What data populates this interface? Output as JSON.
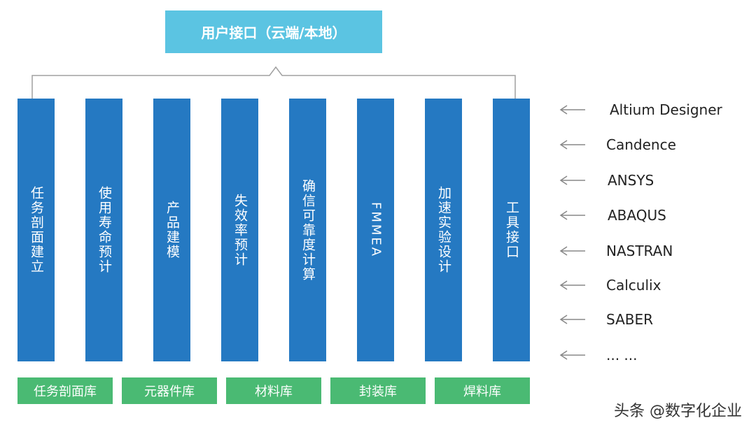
{
  "header": {
    "title": "用户接口（云端/本地）"
  },
  "modules": [
    {
      "label": "任务剖面建立"
    },
    {
      "label": "使用寿命预计"
    },
    {
      "label": "产品建模"
    },
    {
      "label": "失效率预计"
    },
    {
      "label": "确信可靠度计算"
    },
    {
      "label": "FMMEA"
    },
    {
      "label": "加速实验设计"
    },
    {
      "label": "工具接口"
    }
  ],
  "libraries": [
    {
      "label": "任务剖面库"
    },
    {
      "label": "元器件库"
    },
    {
      "label": "材料库"
    },
    {
      "label": "封装库"
    },
    {
      "label": "焊料库"
    }
  ],
  "tools": [
    {
      "name": "Altium Designer"
    },
    {
      "name": "Candence"
    },
    {
      "name": "ANSYS"
    },
    {
      "name": "ABAQUS"
    },
    {
      "name": "NASTRAN"
    },
    {
      "name": "Calculix"
    },
    {
      "name": "SABER"
    },
    {
      "name": "... ..."
    }
  ],
  "watermark": "头条 @数字化企业",
  "colors": {
    "header": "#5bc4e2",
    "module": "#2579c2",
    "library": "#4aba73",
    "arrow": "#888888"
  }
}
